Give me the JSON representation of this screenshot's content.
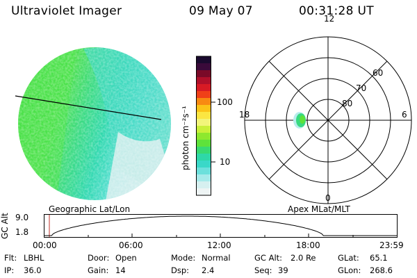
{
  "header": {
    "instrument": "Ultraviolet Imager",
    "date": "09 May 07",
    "time": "00:31:28 UT"
  },
  "colorbar": {
    "unit_label": "photon cm⁻²s⁻¹",
    "ticks": [
      "100",
      "10"
    ],
    "colors_top_to_bottom": [
      "#1a0a2e",
      "#3a0a3a",
      "#7a0a28",
      "#b0102a",
      "#d81a24",
      "#f04018",
      "#f88a12",
      "#fbc418",
      "#fbe642",
      "#f2f57a",
      "#caf03a",
      "#8ee82e",
      "#5ee23a",
      "#38da72",
      "#2ed8a8",
      "#3ad8c8",
      "#6ce0dc",
      "#a6eaea",
      "#d6f0f0",
      "#eef4f4"
    ]
  },
  "left_panel": {
    "title": "Geographic Lat/Lon"
  },
  "polar_panel": {
    "title": "Apex MLat/MLT",
    "mlt_labels": {
      "top": "12",
      "left": "18",
      "right": "6",
      "bottom": "0"
    },
    "lat_labels": [
      "60",
      "70",
      "80"
    ]
  },
  "timeline": {
    "ylabel": "GC Alt",
    "y_ticks": [
      "9.0",
      "1.8"
    ],
    "x_ticks": [
      "00:00",
      "06:00",
      "12:00",
      "18:00",
      "23:59"
    ]
  },
  "info": {
    "row1": [
      "Flt:",
      "LBHL",
      "Door:",
      "Open",
      "Mode:",
      "Normal",
      "GC Alt:",
      "2.0 Re",
      "GLat:",
      "65.1"
    ],
    "row2": [
      "IP:",
      "36.0",
      "Gain:",
      "14",
      "Dsp:",
      "2.4",
      "Seq:",
      "39",
      "GLon:",
      "268.6"
    ]
  },
  "colors": {
    "red_marker": "#c0302a"
  }
}
